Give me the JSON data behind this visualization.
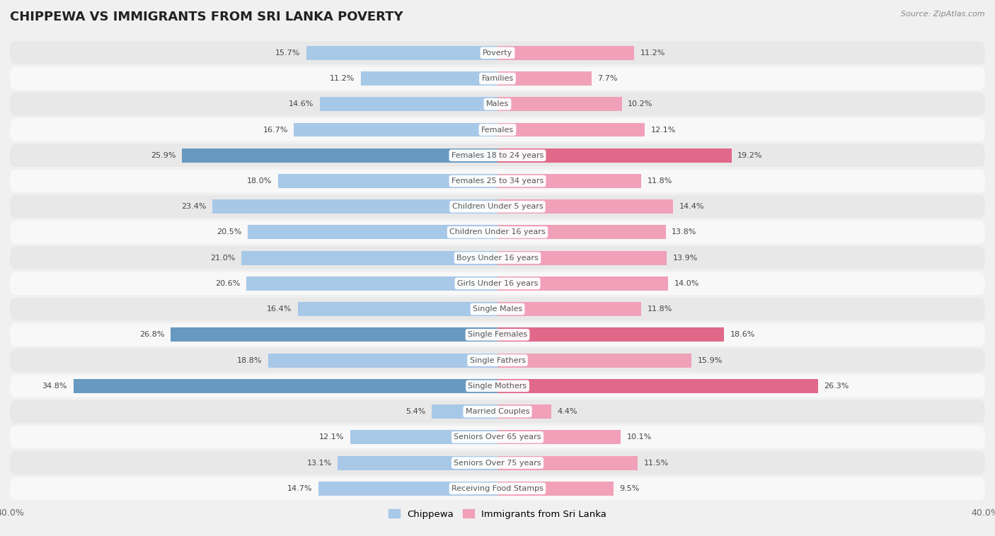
{
  "title": "CHIPPEWA VS IMMIGRANTS FROM SRI LANKA POVERTY",
  "source": "Source: ZipAtlas.com",
  "categories": [
    "Poverty",
    "Families",
    "Males",
    "Females",
    "Females 18 to 24 years",
    "Females 25 to 34 years",
    "Children Under 5 years",
    "Children Under 16 years",
    "Boys Under 16 years",
    "Girls Under 16 years",
    "Single Males",
    "Single Females",
    "Single Fathers",
    "Single Mothers",
    "Married Couples",
    "Seniors Over 65 years",
    "Seniors Over 75 years",
    "Receiving Food Stamps"
  ],
  "chippewa_values": [
    15.7,
    11.2,
    14.6,
    16.7,
    25.9,
    18.0,
    23.4,
    20.5,
    21.0,
    20.6,
    16.4,
    26.8,
    18.8,
    34.8,
    5.4,
    12.1,
    13.1,
    14.7
  ],
  "srilanka_values": [
    11.2,
    7.7,
    10.2,
    12.1,
    19.2,
    11.8,
    14.4,
    13.8,
    13.9,
    14.0,
    11.8,
    18.6,
    15.9,
    26.3,
    4.4,
    10.1,
    11.5,
    9.5
  ],
  "chippewa_color": "#a8c8e8",
  "srilanka_color": "#f0a0b8",
  "highlight_chippewa": [
    4,
    11,
    13
  ],
  "highlight_srilanka": [
    4,
    11,
    13
  ],
  "highlight_chippewa_color": "#6899c0",
  "highlight_srilanka_color": "#e06888",
  "bar_height": 0.55,
  "background_color": "#f0f0f0",
  "row_colors": [
    "#e8e8e8",
    "#f8f8f8"
  ],
  "label_bg": "#ffffff",
  "label_color": "#555555",
  "value_color": "#444444",
  "legend_chippewa": "Chippewa",
  "legend_srilanka": "Immigrants from Sri Lanka",
  "xlim": 40.0,
  "title_fontsize": 13,
  "label_fontsize": 8,
  "value_fontsize": 8
}
